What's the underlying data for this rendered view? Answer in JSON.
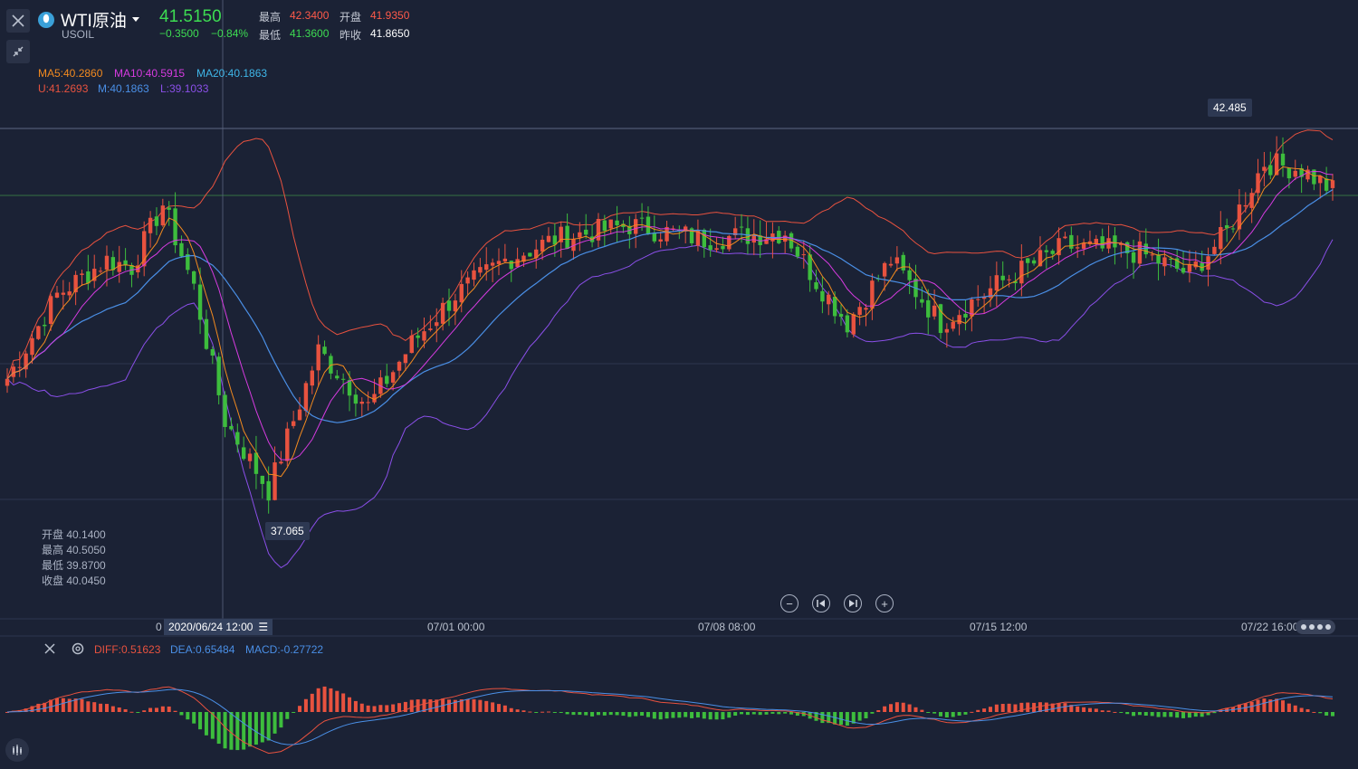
{
  "header": {
    "symbol_name": "WTI原油",
    "symbol_code": "USOIL",
    "symbol_icon": "oil-icon",
    "last_price": "41.5150",
    "change": "−0.3500",
    "change_pct": "−0.84%",
    "high_label": "最高",
    "high_value": "42.3400",
    "open_label": "开盘",
    "open_value": "41.9350",
    "low_label": "最低",
    "low_value": "41.3600",
    "prev_close_label": "昨收",
    "prev_close_value": "41.8650"
  },
  "indicators": {
    "ma5": "MA5:40.2860",
    "ma10": "MA10:40.5915",
    "ma20": "MA20:40.1863",
    "boll_u": "U:41.2693",
    "boll_m": "M:40.1863",
    "boll_l": "L:39.1033"
  },
  "crosshair": {
    "open": "开盘 40.1400",
    "high": "最高 40.5050",
    "low": "最低 39.8700",
    "close": "收盘 40.0450",
    "time_label": "2020/06/24 12:00",
    "time_menu_icon": "menu-icon"
  },
  "annotations": {
    "max_label": "42.485",
    "min_label": "37.065"
  },
  "x_axis": {
    "ticks": [
      "07/01 00:00",
      "07/08 08:00",
      "07/15 12:00",
      "07/22 16:00"
    ],
    "partial_left": "0"
  },
  "controls": {
    "zoom_out": "−",
    "zoom_in": "+",
    "rewind_icon": "skip-back-icon",
    "forward_icon": "skip-forward-icon"
  },
  "macd": {
    "diff": "DIFF:0.51623",
    "dea": "DEA:0.65484",
    "macd": "MACD:-0.27722"
  },
  "colors": {
    "background": "#1b2235",
    "up": "#e8523f",
    "down": "#3dbd3d",
    "ma5": "#f28a1f",
    "ma10": "#d63be0",
    "ma20": "#3fb6e8",
    "boll_u": "#e8523f",
    "boll_m": "#4a8fe6",
    "boll_l": "#8a4fe8",
    "price_green": "#3ddc52",
    "price_red": "#ff5a4a"
  }
}
